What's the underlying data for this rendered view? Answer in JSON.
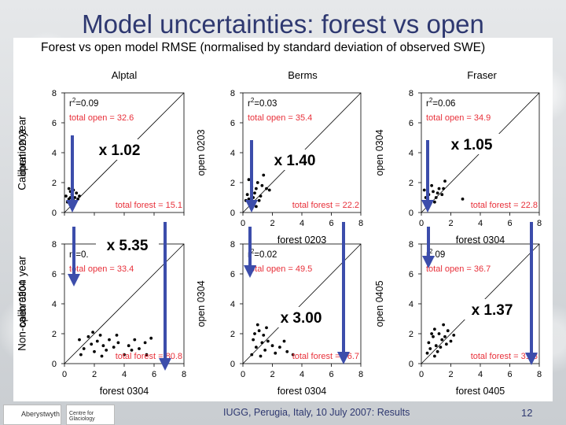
{
  "slide": {
    "title": "Model uncertainties: forest vs open",
    "footer": "IUGG, Perugia, Italy, 10 July 2007: ",
    "footer_highlight": "Results",
    "page_number": "12",
    "logos": {
      "left": "Aberystwyth",
      "right": "Centre for Glaciology"
    }
  },
  "figure": {
    "title": "Forest vs open model RMSE (normalised by standard deviation of observed SWE)",
    "column_titles": [
      "Alptal",
      "Berms",
      "Fraser"
    ],
    "row_titles": [
      "Calibration year",
      "Non-calibration year"
    ]
  },
  "colors": {
    "points": "#000000",
    "annotation": "#e8303a",
    "arrow": "#3c4dab",
    "title": "#2e3870"
  },
  "chart_data": [
    {
      "type": "scatter",
      "site": "Alptal",
      "row": "Calibration year",
      "xlabel": "",
      "ylabel": "open 0203",
      "xlim": [
        0,
        8
      ],
      "ylim": [
        0,
        8
      ],
      "ticks": [
        0,
        2,
        4,
        6,
        8
      ],
      "r2": "=0.09",
      "total_open": "total open = 32.6",
      "total_forest": "total forest = 15.1",
      "factor": "x 1.02",
      "points": [
        [
          0.1,
          1.1
        ],
        [
          0.3,
          0.9
        ],
        [
          0.5,
          1.2
        ],
        [
          0.6,
          0.8
        ],
        [
          0.4,
          1.4
        ],
        [
          0.7,
          1.0
        ],
        [
          0.2,
          0.7
        ],
        [
          0.8,
          1.3
        ],
        [
          0.5,
          0.6
        ],
        [
          0.3,
          1.6
        ],
        [
          0.9,
          0.9
        ],
        [
          0.6,
          1.5
        ],
        [
          0.4,
          1.0
        ],
        [
          0.7,
          0.7
        ],
        [
          1.0,
          1.1
        ]
      ]
    },
    {
      "type": "scatter",
      "site": "Berms",
      "row": "Calibration year",
      "xlabel": "forest 0203",
      "ylabel": "open 0203",
      "xlim": [
        0,
        8
      ],
      "ylim": [
        0,
        8
      ],
      "ticks": [
        0,
        2,
        4,
        6,
        8
      ],
      "r2": "=0.03",
      "total_open": "total open = 35.4",
      "total_forest": "total forest = 22.2",
      "factor": "x 1.40",
      "points": [
        [
          0.3,
          1.2
        ],
        [
          0.6,
          0.6
        ],
        [
          0.4,
          2.2
        ],
        [
          0.9,
          1.6
        ],
        [
          1.3,
          1.8
        ],
        [
          1.6,
          1.6
        ],
        [
          0.7,
          1.0
        ],
        [
          1.1,
          0.8
        ],
        [
          0.5,
          0.5
        ],
        [
          0.8,
          1.3
        ],
        [
          1.0,
          2.0
        ],
        [
          0.2,
          0.8
        ],
        [
          1.2,
          1.1
        ],
        [
          0.6,
          1.7
        ],
        [
          1.4,
          2.5
        ],
        [
          1.8,
          1.5
        ],
        [
          0.9,
          0.4
        ],
        [
          0.4,
          0.9
        ]
      ]
    },
    {
      "type": "scatter",
      "site": "Fraser",
      "row": "Calibration year",
      "xlabel": "forest 0304",
      "ylabel": "open 0304",
      "xlim": [
        0,
        8
      ],
      "ylim": [
        0,
        8
      ],
      "ticks": [
        0,
        2,
        4,
        6,
        8
      ],
      "r2": "=0.06",
      "total_open": "total open = 34.9",
      "total_forest": "total forest = 22.8",
      "factor": "x 1.05",
      "points": [
        [
          0.2,
          1.5
        ],
        [
          0.5,
          1.2
        ],
        [
          0.8,
          1.4
        ],
        [
          1.0,
          1.0
        ],
        [
          0.4,
          0.8
        ],
        [
          0.6,
          0.6
        ],
        [
          1.2,
          1.6
        ],
        [
          0.3,
          1.0
        ],
        [
          0.9,
          0.7
        ],
        [
          1.4,
          1.2
        ],
        [
          1.6,
          2.1
        ],
        [
          1.5,
          1.6
        ],
        [
          0.7,
          1.8
        ],
        [
          2.8,
          0.9
        ],
        [
          0.5,
          0.4
        ],
        [
          1.1,
          1.3
        ]
      ]
    },
    {
      "type": "scatter",
      "site": "Alptal",
      "row": "Non-calibration year",
      "xlabel": "forest 0304",
      "ylabel": "open 0304",
      "xlim": [
        0,
        8
      ],
      "ylim": [
        0,
        8
      ],
      "ticks": [
        0,
        2,
        4,
        6,
        8
      ],
      "r2": "=0.",
      "total_open": "total open = 33.4",
      "total_forest": "total forest = 80.8",
      "factor": "x 5.35",
      "points": [
        [
          1.0,
          1.6
        ],
        [
          1.3,
          1.0
        ],
        [
          1.6,
          1.8
        ],
        [
          1.8,
          1.3
        ],
        [
          2.0,
          0.8
        ],
        [
          2.2,
          1.5
        ],
        [
          2.4,
          1.9
        ],
        [
          2.6,
          1.2
        ],
        [
          2.8,
          0.9
        ],
        [
          3.0,
          1.6
        ],
        [
          3.3,
          1.1
        ],
        [
          3.6,
          1.4
        ],
        [
          4.0,
          0.6
        ],
        [
          4.3,
          1.2
        ],
        [
          4.7,
          1.6
        ],
        [
          5.0,
          1.0
        ],
        [
          5.4,
          1.4
        ],
        [
          5.8,
          1.7
        ],
        [
          1.1,
          0.6
        ],
        [
          1.9,
          2.1
        ],
        [
          2.5,
          0.5
        ],
        [
          3.5,
          1.9
        ],
        [
          4.5,
          0.9
        ],
        [
          5.5,
          0.6
        ]
      ]
    },
    {
      "type": "scatter",
      "site": "Berms",
      "row": "Non-calibration year",
      "xlabel": "forest 0304",
      "ylabel": "open 0304",
      "xlim": [
        0,
        8
      ],
      "ylim": [
        0,
        8
      ],
      "ticks": [
        0,
        2,
        4,
        6,
        8
      ],
      "r2": "=0.02",
      "total_open": "total open = 49.5",
      "total_forest": "total forest = 66.7",
      "factor": "x 3.00",
      "points": [
        [
          0.7,
          1.6
        ],
        [
          0.9,
          1.1
        ],
        [
          1.1,
          2.2
        ],
        [
          1.3,
          1.4
        ],
        [
          1.5,
          0.9
        ],
        [
          0.6,
          0.6
        ],
        [
          1.0,
          2.6
        ],
        [
          1.4,
          1.9
        ],
        [
          1.7,
          1.5
        ],
        [
          2.0,
          1.2
        ],
        [
          2.2,
          0.7
        ],
        [
          2.5,
          1.1
        ],
        [
          3.0,
          0.8
        ],
        [
          1.2,
          0.5
        ],
        [
          0.8,
          2.0
        ],
        [
          1.6,
          2.4
        ],
        [
          2.8,
          1.5
        ],
        [
          3.4,
          0.6
        ]
      ]
    },
    {
      "type": "scatter",
      "site": "Fraser",
      "row": "Non-calibration year",
      "xlabel": "forest 0405",
      "ylabel": "open 0405",
      "xlim": [
        0,
        8
      ],
      "ylim": [
        0,
        8
      ],
      "ticks": [
        0,
        2,
        4,
        6,
        8
      ],
      "r2": ".09",
      "total_open": "total open = 36.7",
      "total_forest": "total forest = 31.3",
      "factor": "x 1.37",
      "points": [
        [
          0.5,
          1.4
        ],
        [
          0.8,
          1.8
        ],
        [
          1.0,
          1.2
        ],
        [
          1.2,
          2.0
        ],
        [
          1.4,
          1.6
        ],
        [
          0.6,
          1.0
        ],
        [
          0.9,
          2.3
        ],
        [
          1.3,
          1.1
        ],
        [
          1.6,
          1.8
        ],
        [
          1.8,
          2.2
        ],
        [
          0.4,
          0.7
        ],
        [
          1.1,
          0.8
        ],
        [
          1.5,
          2.6
        ],
        [
          2.0,
          1.5
        ],
        [
          0.7,
          2.0
        ],
        [
          1.7,
          1.3
        ],
        [
          2.2,
          1.9
        ],
        [
          0.9,
          0.5
        ]
      ]
    }
  ]
}
